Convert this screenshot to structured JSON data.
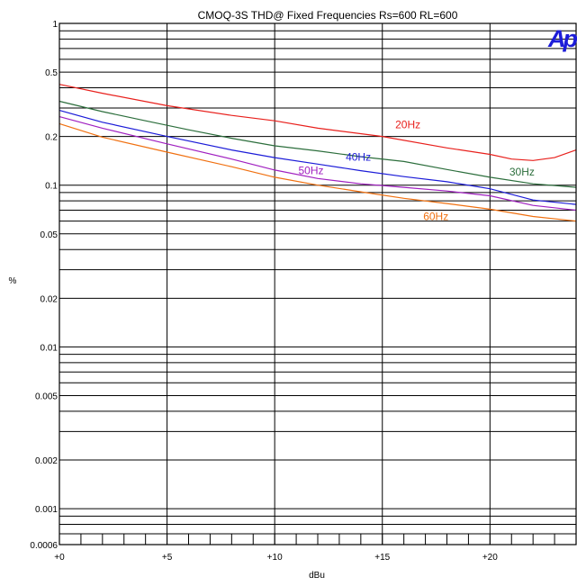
{
  "chart_data": {
    "type": "line",
    "title": "CMOQ-3S  THD@ Fixed Frequencies  Rs=600  RL=600",
    "xlabel": "dBu",
    "ylabel": "%",
    "xlim": [
      0,
      24
    ],
    "ylim": [
      0.0006,
      1
    ],
    "yscale": "log",
    "grid": true,
    "x_ticks": [
      {
        "v": 0,
        "label": "+0"
      },
      {
        "v": 5,
        "label": "+5"
      },
      {
        "v": 10,
        "label": "+10"
      },
      {
        "v": 15,
        "label": "+15"
      },
      {
        "v": 20,
        "label": "+20"
      }
    ],
    "y_ticks": [
      {
        "v": 1,
        "label": "1"
      },
      {
        "v": 0.5,
        "label": "0.5"
      },
      {
        "v": 0.2,
        "label": "0.2"
      },
      {
        "v": 0.1,
        "label": "0.1"
      },
      {
        "v": 0.05,
        "label": "0.05"
      },
      {
        "v": 0.02,
        "label": "0.02"
      },
      {
        "v": 0.01,
        "label": "0.01"
      },
      {
        "v": 0.005,
        "label": "0.005"
      },
      {
        "v": 0.002,
        "label": "0.002"
      },
      {
        "v": 0.001,
        "label": "0.001"
      },
      {
        "v": 0.0006,
        "label": "0.0006"
      }
    ],
    "series": [
      {
        "name": "20Hz",
        "color": "#e8201c",
        "label_pos": [
          15.6,
          0.225
        ],
        "points": [
          [
            0,
            0.42
          ],
          [
            2,
            0.37
          ],
          [
            5,
            0.31
          ],
          [
            8,
            0.27
          ],
          [
            10,
            0.25
          ],
          [
            12,
            0.225
          ],
          [
            15,
            0.2
          ],
          [
            18,
            0.17
          ],
          [
            20,
            0.155
          ],
          [
            21,
            0.145
          ],
          [
            22,
            0.142
          ],
          [
            23,
            0.148
          ],
          [
            24,
            0.165
          ]
        ]
      },
      {
        "name": "30Hz",
        "color": "#2c6e3c",
        "label_pos": [
          20.9,
          0.115
        ],
        "points": [
          [
            0,
            0.33
          ],
          [
            2,
            0.285
          ],
          [
            4,
            0.25
          ],
          [
            6,
            0.22
          ],
          [
            8,
            0.195
          ],
          [
            10,
            0.175
          ],
          [
            12,
            0.163
          ],
          [
            14,
            0.15
          ],
          [
            16,
            0.14
          ],
          [
            18,
            0.125
          ],
          [
            20,
            0.112
          ],
          [
            22,
            0.102
          ],
          [
            24,
            0.097
          ]
        ]
      },
      {
        "name": "40Hz",
        "color": "#1c1cd8",
        "label_pos": [
          13.3,
          0.142
        ],
        "points": [
          [
            0,
            0.29
          ],
          [
            2,
            0.245
          ],
          [
            5,
            0.2
          ],
          [
            8,
            0.165
          ],
          [
            10,
            0.148
          ],
          [
            12,
            0.135
          ],
          [
            14,
            0.123
          ],
          [
            16,
            0.113
          ],
          [
            18,
            0.105
          ],
          [
            20,
            0.095
          ],
          [
            22,
            0.081
          ],
          [
            24,
            0.076
          ]
        ]
      },
      {
        "name": "50Hz",
        "color": "#a020c0",
        "label_pos": [
          11.1,
          0.117
        ],
        "points": [
          [
            0,
            0.265
          ],
          [
            2,
            0.225
          ],
          [
            5,
            0.18
          ],
          [
            8,
            0.145
          ],
          [
            10,
            0.124
          ],
          [
            12,
            0.11
          ],
          [
            14,
            0.102
          ],
          [
            16,
            0.097
          ],
          [
            18,
            0.092
          ],
          [
            20,
            0.086
          ],
          [
            22,
            0.075
          ],
          [
            24,
            0.07
          ]
        ]
      },
      {
        "name": "60Hz",
        "color": "#f07010",
        "label_pos": [
          16.9,
          0.061
        ],
        "points": [
          [
            0,
            0.24
          ],
          [
            2,
            0.198
          ],
          [
            5,
            0.16
          ],
          [
            8,
            0.13
          ],
          [
            10,
            0.112
          ],
          [
            12,
            0.1
          ],
          [
            14,
            0.091
          ],
          [
            16,
            0.083
          ],
          [
            18,
            0.077
          ],
          [
            20,
            0.071
          ],
          [
            22,
            0.064
          ],
          [
            24,
            0.06
          ]
        ]
      }
    ]
  },
  "logo": {
    "text": "Ap",
    "color": "#1c1cd8"
  }
}
